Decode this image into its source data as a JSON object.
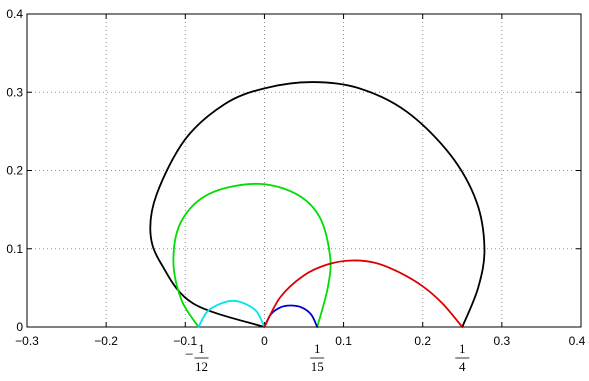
{
  "chart_data": {
    "type": "line",
    "title": "",
    "xlabel": "",
    "ylabel": "",
    "xlim": [
      -0.3,
      0.4
    ],
    "ylim": [
      0,
      0.4
    ],
    "grid": true,
    "legend": "none",
    "x_ticks": [
      {
        "value": -0.3,
        "label": "−0.3"
      },
      {
        "value": -0.2,
        "label": "−0.2"
      },
      {
        "value": -0.1,
        "label": "−0.1"
      },
      {
        "value": 0,
        "label": "0"
      },
      {
        "value": 0.1,
        "label": "0.1"
      },
      {
        "value": 0.2,
        "label": "0.2"
      },
      {
        "value": 0.3,
        "label": "0.3"
      },
      {
        "value": 0.4,
        "label": "0.4"
      }
    ],
    "y_ticks": [
      {
        "value": 0,
        "label": "0"
      },
      {
        "value": 0.1,
        "label": "0.1"
      },
      {
        "value": 0.2,
        "label": "0.2"
      },
      {
        "value": 0.3,
        "label": "0.3"
      },
      {
        "value": 0.4,
        "label": "0.4"
      }
    ],
    "fraction_labels": [
      {
        "value": -0.0833,
        "sign": "−",
        "numerator": "1",
        "denominator": "12"
      },
      {
        "value": 0.0667,
        "sign": "",
        "numerator": "1",
        "denominator": "15"
      },
      {
        "value": 0.25,
        "sign": "",
        "numerator": "1",
        "denominator": "4"
      }
    ],
    "series": [
      {
        "color": "#000000",
        "points": [
          [
            0,
            0
          ],
          [
            -0.09,
            0.03
          ],
          [
            -0.13,
            0.08
          ],
          [
            -0.144,
            0.12
          ],
          [
            -0.136,
            0.17
          ],
          [
            -0.1,
            0.24
          ],
          [
            -0.05,
            0.285
          ],
          [
            0,
            0.305
          ],
          [
            0.06,
            0.313
          ],
          [
            0.12,
            0.305
          ],
          [
            0.18,
            0.275
          ],
          [
            0.235,
            0.22
          ],
          [
            0.268,
            0.16
          ],
          [
            0.278,
            0.1
          ],
          [
            0.27,
            0.05
          ],
          [
            0.25,
            0
          ]
        ]
      },
      {
        "color": "#00dd00",
        "points": [
          [
            -0.0833,
            0
          ],
          [
            -0.105,
            0.035
          ],
          [
            -0.115,
            0.085
          ],
          [
            -0.105,
            0.135
          ],
          [
            -0.07,
            0.17
          ],
          [
            -0.01,
            0.183
          ],
          [
            0.04,
            0.17
          ],
          [
            0.07,
            0.14
          ],
          [
            0.083,
            0.09
          ],
          [
            0.08,
            0.05
          ],
          [
            0.0667,
            0
          ]
        ]
      },
      {
        "color": "#00e5e5",
        "points": [
          [
            -0.0833,
            0
          ],
          [
            -0.072,
            0.02
          ],
          [
            -0.055,
            0.03
          ],
          [
            -0.04,
            0.0335
          ],
          [
            -0.025,
            0.03
          ],
          [
            -0.01,
            0.02
          ],
          [
            0,
            0
          ]
        ]
      },
      {
        "color": "#0000cc",
        "points": [
          [
            0,
            0
          ],
          [
            0.008,
            0.016
          ],
          [
            0.02,
            0.025
          ],
          [
            0.033,
            0.0275
          ],
          [
            0.047,
            0.025
          ],
          [
            0.059,
            0.016
          ],
          [
            0.0667,
            0
          ]
        ]
      },
      {
        "color": "#dd0000",
        "points": [
          [
            0,
            0
          ],
          [
            0.02,
            0.038
          ],
          [
            0.05,
            0.066
          ],
          [
            0.08,
            0.08
          ],
          [
            0.11,
            0.085
          ],
          [
            0.14,
            0.082
          ],
          [
            0.17,
            0.07
          ],
          [
            0.2,
            0.052
          ],
          [
            0.225,
            0.03
          ],
          [
            0.25,
            0
          ]
        ]
      }
    ]
  }
}
